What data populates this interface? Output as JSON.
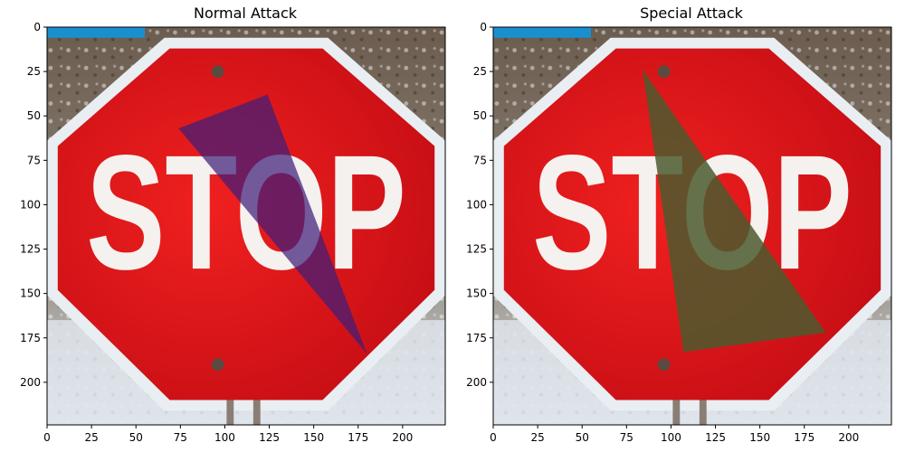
{
  "panels": [
    {
      "title": "Normal Attack",
      "overlay_color": "#3f1f7a",
      "overlay_opacity": 0.72,
      "triangle": [
        [
          74,
          57
        ],
        [
          124,
          38
        ],
        [
          180,
          184
        ]
      ]
    },
    {
      "title": "Special Attack",
      "overlay_color": "#4b5a2e",
      "overlay_opacity": 0.85,
      "triangle": [
        [
          84,
          24
        ],
        [
          187,
          172
        ],
        [
          107,
          183
        ]
      ]
    }
  ],
  "axes": {
    "x_range": [
      0,
      224
    ],
    "y_range": [
      0,
      224
    ],
    "x_ticks": [
      "0",
      "25",
      "50",
      "75",
      "100",
      "125",
      "150",
      "175",
      "200"
    ],
    "y_ticks": [
      "0",
      "25",
      "50",
      "75",
      "100",
      "125",
      "150",
      "175",
      "200"
    ]
  },
  "sign": {
    "text": "STOP",
    "sign_color": "#e1141c",
    "text_color": "#f5f1ee"
  }
}
